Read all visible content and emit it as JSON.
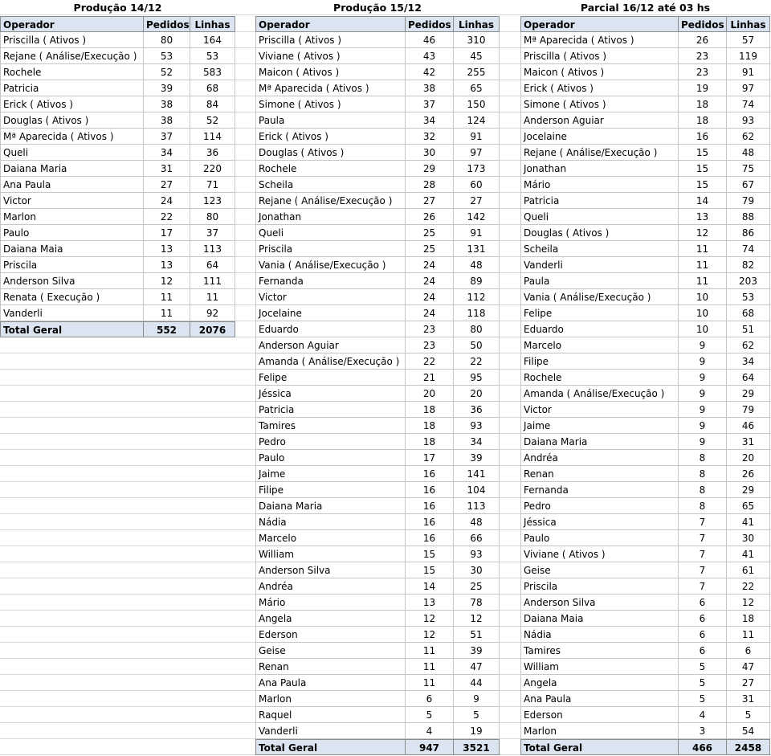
{
  "tables": [
    {
      "title": "Produção 14/12",
      "headers": [
        "Operador",
        "Pedidos",
        "Linhas"
      ],
      "rows": [
        [
          "Priscilla ( Ativos )",
          "80",
          "164"
        ],
        [
          "Rejane ( Análise/Execução )",
          "53",
          "53"
        ],
        [
          "Rochele",
          "52",
          "583"
        ],
        [
          "Patricia",
          "39",
          "68"
        ],
        [
          "Erick ( Ativos )",
          "38",
          "84"
        ],
        [
          "Douglas ( Ativos )",
          "38",
          "52"
        ],
        [
          "Mª Aparecida ( Ativos )",
          "37",
          "114"
        ],
        [
          "Queli",
          "34",
          "36"
        ],
        [
          "Daiana Maria",
          "31",
          "220"
        ],
        [
          "Ana Paula",
          "27",
          "71"
        ],
        [
          "Victor",
          "24",
          "123"
        ],
        [
          "Marlon",
          "22",
          "80"
        ],
        [
          "Paulo",
          "17",
          "37"
        ],
        [
          "Daiana Maia",
          "13",
          "113"
        ],
        [
          "Priscila",
          "13",
          "64"
        ],
        [
          "Anderson Silva",
          "12",
          "111"
        ],
        [
          "Renata ( Execução )",
          "11",
          "11"
        ],
        [
          "Vanderli",
          "11",
          "92"
        ]
      ],
      "total": [
        "Total Geral",
        "552",
        "2076"
      ]
    },
    {
      "title": "Produção 15/12",
      "headers": [
        "Operador",
        "Pedidos",
        "Linhas"
      ],
      "rows": [
        [
          "Priscilla ( Ativos )",
          "46",
          "310"
        ],
        [
          "Viviane ( Ativos )",
          "43",
          "45"
        ],
        [
          "Maicon ( Ativos )",
          "42",
          "255"
        ],
        [
          "Mª Aparecida ( Ativos )",
          "38",
          "65"
        ],
        [
          "Simone ( Ativos )",
          "37",
          "150"
        ],
        [
          "Paula",
          "34",
          "124"
        ],
        [
          "Erick ( Ativos )",
          "32",
          "91"
        ],
        [
          "Douglas ( Ativos )",
          "30",
          "97"
        ],
        [
          "Rochele",
          "29",
          "173"
        ],
        [
          "Scheila",
          "28",
          "60"
        ],
        [
          "Rejane ( Análise/Execução )",
          "27",
          "27"
        ],
        [
          "Jonathan",
          "26",
          "142"
        ],
        [
          "Queli",
          "25",
          "91"
        ],
        [
          "Priscila",
          "25",
          "131"
        ],
        [
          "Vania ( Análise/Execução )",
          "24",
          "48"
        ],
        [
          "Fernanda",
          "24",
          "89"
        ],
        [
          "Victor",
          "24",
          "112"
        ],
        [
          "Jocelaine",
          "24",
          "118"
        ],
        [
          "Eduardo",
          "23",
          "80"
        ],
        [
          "Anderson Aguiar",
          "23",
          "50"
        ],
        [
          "Amanda ( Análise/Execução )",
          "22",
          "22"
        ],
        [
          "Felipe",
          "21",
          "95"
        ],
        [
          "Jéssica",
          "20",
          "20"
        ],
        [
          "Patricia",
          "18",
          "36"
        ],
        [
          "Tamires",
          "18",
          "93"
        ],
        [
          "Pedro",
          "18",
          "34"
        ],
        [
          "Paulo",
          "17",
          "39"
        ],
        [
          "Jaime",
          "16",
          "141"
        ],
        [
          "Filipe",
          "16",
          "104"
        ],
        [
          "Daiana Maria",
          "16",
          "113"
        ],
        [
          "Nádia",
          "16",
          "48"
        ],
        [
          "Marcelo",
          "16",
          "66"
        ],
        [
          "William",
          "15",
          "93"
        ],
        [
          "Anderson Silva",
          "15",
          "30"
        ],
        [
          "Andréa",
          "14",
          "25"
        ],
        [
          "Mário",
          "13",
          "78"
        ],
        [
          "Angela",
          "12",
          "12"
        ],
        [
          "Ederson",
          "12",
          "51"
        ],
        [
          "Geise",
          "11",
          "39"
        ],
        [
          "Renan",
          "11",
          "47"
        ],
        [
          "Ana Paula",
          "11",
          "44"
        ],
        [
          "Marlon",
          "6",
          "9"
        ],
        [
          "Raquel",
          "5",
          "5"
        ],
        [
          "Vanderli",
          "4",
          "19"
        ]
      ],
      "total": [
        "Total Geral",
        "947",
        "3521"
      ]
    },
    {
      "title": "Parcial 16/12 até 03 hs",
      "headers": [
        "Operador",
        "Pedidos",
        "Linhas"
      ],
      "rows": [
        [
          "Mª Aparecida ( Ativos )",
          "26",
          "57"
        ],
        [
          "Priscilla ( Ativos )",
          "23",
          "119"
        ],
        [
          "Maicon ( Ativos )",
          "23",
          "91"
        ],
        [
          "Erick ( Ativos )",
          "19",
          "97"
        ],
        [
          "Simone ( Ativos )",
          "18",
          "74"
        ],
        [
          "Anderson Aguiar",
          "18",
          "93"
        ],
        [
          "Jocelaine",
          "16",
          "62"
        ],
        [
          "Rejane ( Análise/Execução )",
          "15",
          "48"
        ],
        [
          "Jonathan",
          "15",
          "75"
        ],
        [
          "Mário",
          "15",
          "67"
        ],
        [
          "Patricia",
          "14",
          "79"
        ],
        [
          "Queli",
          "13",
          "88"
        ],
        [
          "Douglas ( Ativos )",
          "12",
          "86"
        ],
        [
          "Scheila",
          "11",
          "74"
        ],
        [
          "Vanderli",
          "11",
          "82"
        ],
        [
          "Paula",
          "11",
          "203"
        ],
        [
          "Vania ( Análise/Execução )",
          "10",
          "53"
        ],
        [
          "Felipe",
          "10",
          "68"
        ],
        [
          "Eduardo",
          "10",
          "51"
        ],
        [
          "Marcelo",
          "9",
          "62"
        ],
        [
          "Filipe",
          "9",
          "34"
        ],
        [
          "Rochele",
          "9",
          "64"
        ],
        [
          "Amanda ( Análise/Execução )",
          "9",
          "29"
        ],
        [
          "Victor",
          "9",
          "79"
        ],
        [
          "Jaime",
          "9",
          "46"
        ],
        [
          "Daiana Maria",
          "9",
          "31"
        ],
        [
          "Andréa",
          "8",
          "20"
        ],
        [
          "Renan",
          "8",
          "26"
        ],
        [
          "Fernanda",
          "8",
          "29"
        ],
        [
          "Pedro",
          "8",
          "65"
        ],
        [
          "Jéssica",
          "7",
          "41"
        ],
        [
          "Paulo",
          "7",
          "30"
        ],
        [
          "Viviane ( Ativos )",
          "7",
          "41"
        ],
        [
          "Geise",
          "7",
          "61"
        ],
        [
          "Priscila",
          "7",
          "22"
        ],
        [
          "Anderson Silva",
          "6",
          "12"
        ],
        [
          "Daiana Maia",
          "6",
          "18"
        ],
        [
          "Nádia",
          "6",
          "11"
        ],
        [
          "Tamires",
          "6",
          "6"
        ],
        [
          "William",
          "5",
          "47"
        ],
        [
          "Angela",
          "5",
          "27"
        ],
        [
          "Ana Paula",
          "5",
          "31"
        ],
        [
          "Ederson",
          "4",
          "5"
        ],
        [
          "Marlon",
          "3",
          "54"
        ]
      ],
      "total": [
        "Total Geral",
        "466",
        "2458"
      ]
    }
  ]
}
